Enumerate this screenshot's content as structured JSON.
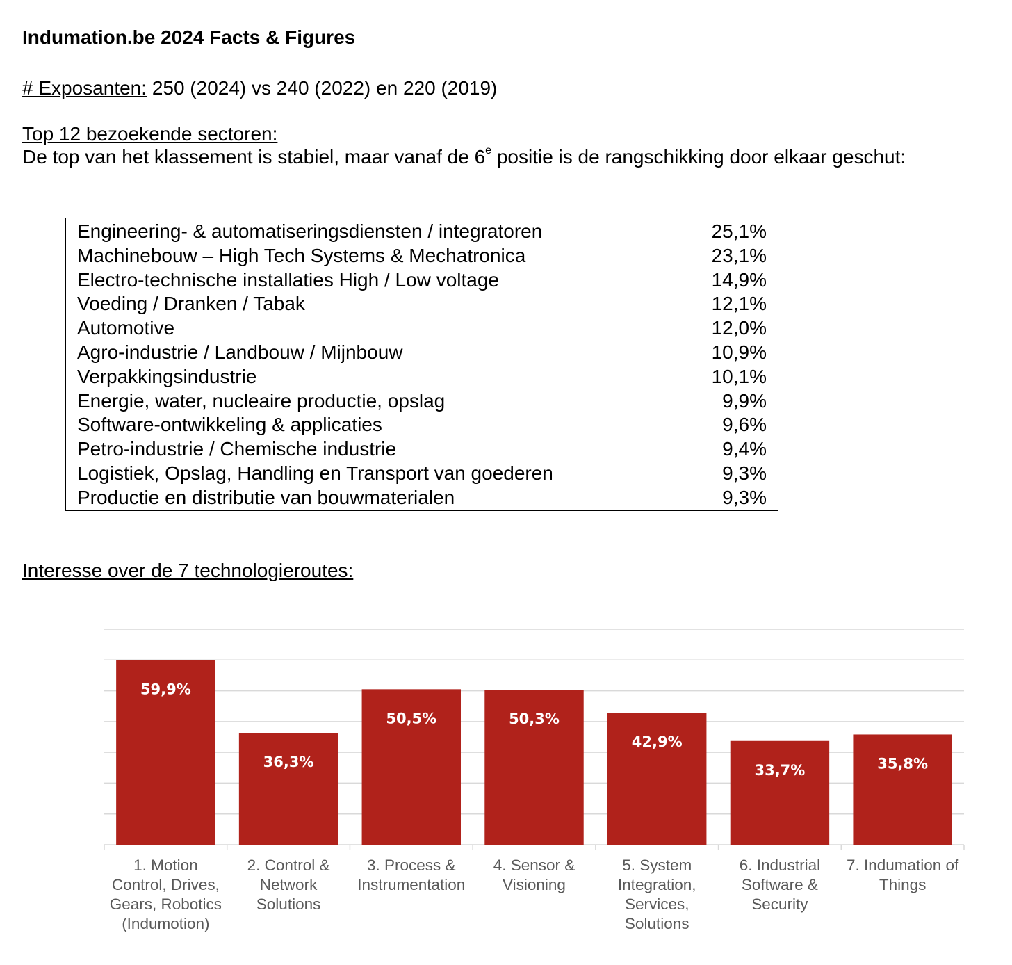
{
  "title": "Indumation.be 2024 Facts & Figures",
  "exhibitors": {
    "label": "# Exposanten:",
    "text": "250 (2024) vs 240 (2022) en 220 (2019)"
  },
  "sectors": {
    "heading": "Top 12 bezoekende sectoren:",
    "intro_before": "De top van het klassement is stabiel, maar vanaf de 6",
    "intro_sup": "e",
    "intro_after": " positie is de rangschikking door elkaar geschut:",
    "rows": [
      {
        "name": "Engineering- & automatiseringsdiensten / integratoren",
        "value": "25,1%"
      },
      {
        "name": "Machinebouw – High Tech Systems & Mechatronica",
        "value": "23,1%"
      },
      {
        "name": "Electro-technische installaties High / Low voltage",
        "value": "14,9%"
      },
      {
        "name": "Voeding / Dranken / Tabak",
        "value": "12,1%"
      },
      {
        "name": "Automotive",
        "value": "12,0%"
      },
      {
        "name": "Agro-industrie / Landbouw / Mijnbouw",
        "value": "10,9%"
      },
      {
        "name": "Verpakkingsindustrie",
        "value": "10,1%"
      },
      {
        "name": "Energie, water, nucleaire productie, opslag",
        "value": "9,9%"
      },
      {
        "name": "Software-ontwikkeling & applicaties",
        "value": "9,6%"
      },
      {
        "name": "Petro-industrie / Chemische industrie",
        "value": "9,4%"
      },
      {
        "name": "Logistiek, Opslag, Handling en Transport van goederen",
        "value": "9,3%"
      },
      {
        "name": "Productie en distributie van bouwmaterialen",
        "value": "9,3%"
      }
    ]
  },
  "routes_heading": "Interesse over de 7 technologieroutes:",
  "chart_data": {
    "type": "bar",
    "categories": [
      [
        "1. Motion",
        "Control, Drives,",
        "Gears, Robotics",
        "(Indumotion)"
      ],
      [
        "2. Control &",
        "Network",
        "Solutions"
      ],
      [
        "3. Process &",
        "Instrumentation"
      ],
      [
        "4. Sensor &",
        "Visioning"
      ],
      [
        "5. System",
        "Integration,",
        "Services,",
        "Solutions"
      ],
      [
        "6. Industrial",
        "Software &",
        "Security"
      ],
      [
        "7. Indumation of",
        "Things"
      ]
    ],
    "values": [
      59.9,
      36.3,
      50.5,
      50.3,
      42.9,
      33.7,
      35.8
    ],
    "data_labels": [
      "59,9%",
      "36,3%",
      "50,5%",
      "50,3%",
      "42,9%",
      "33,7%",
      "35,8%"
    ],
    "ylim": [
      0,
      70
    ],
    "grid": true,
    "bar_color": "#b0221b",
    "grid_color": "#d9d9d9",
    "label_color": "#595959"
  }
}
